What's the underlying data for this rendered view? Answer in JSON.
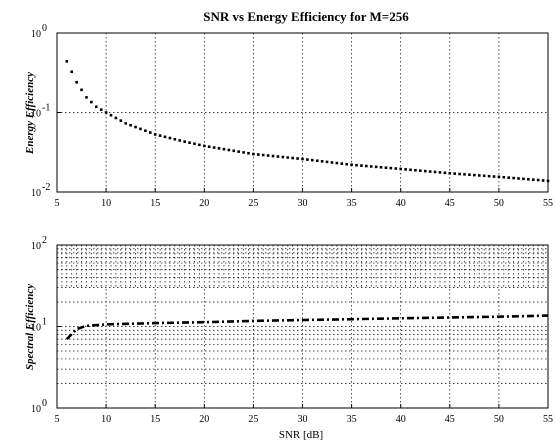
{
  "chart_data": [
    {
      "type": "line",
      "title": "SNR vs Energy Efficiency for M=256",
      "xlabel": "",
      "ylabel": "Energy Efficiency",
      "xlim": [
        5,
        55
      ],
      "ylim": [
        0.01,
        1
      ],
      "yscale": "log",
      "grid": true,
      "xticks": [
        5,
        10,
        15,
        20,
        25,
        30,
        35,
        40,
        45,
        50,
        55
      ],
      "xtick_labels": [
        "5",
        "10",
        "15",
        "20",
        "25",
        "30",
        "35",
        "40",
        "45",
        "50",
        "55"
      ],
      "yticks": [
        0.01,
        0.1,
        1
      ],
      "ytick_labels": [
        {
          "base": "10",
          "exp": "-2"
        },
        {
          "base": "10",
          "exp": "-1"
        },
        {
          "base": "10",
          "exp": "0"
        }
      ],
      "series": [
        {
          "style": "dotted",
          "x": [
            6,
            7,
            8,
            9,
            10,
            12,
            15,
            18,
            20,
            25,
            30,
            35,
            40,
            45,
            50,
            55
          ],
          "y": [
            0.44,
            0.24,
            0.155,
            0.118,
            0.1,
            0.073,
            0.053,
            0.043,
            0.038,
            0.03,
            0.026,
            0.022,
            0.0195,
            0.0172,
            0.0155,
            0.0138
          ]
        }
      ]
    },
    {
      "type": "line",
      "title": "",
      "xlabel": "SNR [dB]",
      "ylabel": "Spectral Efficiency",
      "xlim": [
        5,
        55
      ],
      "ylim": [
        1,
        100
      ],
      "yscale": "log",
      "grid": true,
      "minor_grid": true,
      "xticks": [
        5,
        10,
        15,
        20,
        25,
        30,
        35,
        40,
        45,
        50,
        55
      ],
      "xtick_labels": [
        "5",
        "10",
        "15",
        "20",
        "25",
        "30",
        "35",
        "40",
        "45",
        "50",
        "55"
      ],
      "yticks": [
        1,
        10,
        100
      ],
      "ytick_labels": [
        {
          "base": "10",
          "exp": "0"
        },
        {
          "base": "10",
          "exp": "1"
        },
        {
          "base": "10",
          "exp": "2"
        }
      ],
      "series": [
        {
          "style": "dashdot",
          "x": [
            6,
            7,
            8,
            10,
            15,
            20,
            25,
            30,
            35,
            40,
            45,
            50,
            55
          ],
          "y": [
            7.0,
            9.3,
            10.2,
            10.6,
            11.0,
            11.3,
            11.7,
            12.0,
            12.3,
            12.6,
            12.9,
            13.2,
            13.6
          ]
        }
      ]
    }
  ]
}
